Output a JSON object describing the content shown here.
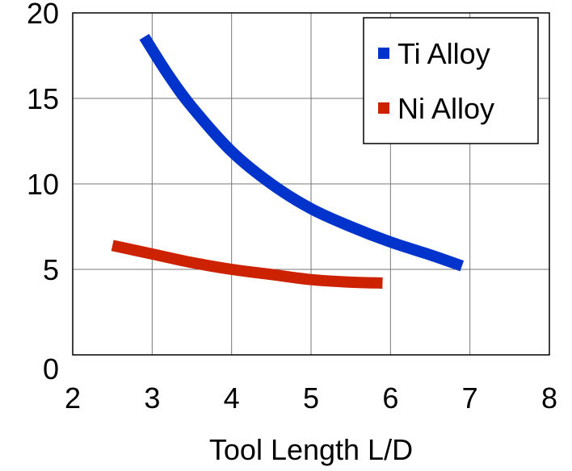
{
  "chart_data": {
    "type": "line",
    "title": "",
    "xlabel": "Tool Length L/D",
    "ylabel": "",
    "xlim": [
      2,
      8
    ],
    "ylim": [
      0,
      20
    ],
    "xticks": [
      "2",
      "3",
      "4",
      "5",
      "6",
      "7",
      "8"
    ],
    "yticks": [
      "0",
      "5",
      "10",
      "15",
      "20"
    ],
    "grid": true,
    "legend_position": "top-right",
    "series": [
      {
        "name": "Ti Alloy",
        "color": "#0033cc",
        "x": [
          2.9,
          3.2,
          3.5,
          4.0,
          4.5,
          5.0,
          5.5,
          6.0,
          6.5,
          6.9
        ],
        "y": [
          18.6,
          16.4,
          14.5,
          11.9,
          10.0,
          8.55,
          7.5,
          6.6,
          5.85,
          5.2
        ]
      },
      {
        "name": "Ni Alloy",
        "color": "#cc2200",
        "x": [
          2.5,
          3.0,
          3.5,
          4.0,
          4.5,
          5.0,
          5.5,
          5.9
        ],
        "y": [
          6.4,
          5.9,
          5.4,
          5.0,
          4.7,
          4.4,
          4.25,
          4.2
        ]
      }
    ]
  }
}
